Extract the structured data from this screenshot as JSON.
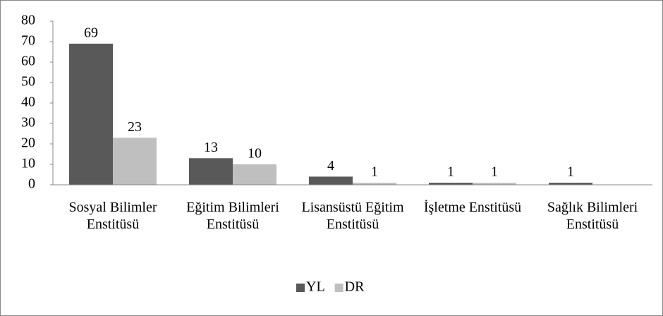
{
  "chart_data": {
    "type": "bar",
    "categories": [
      "Sosyal Bilimler Enstitüsü",
      "Eğitim Bilimleri Enstitüsü",
      "Lisansüstü Eğitim Enstitüsü",
      "İşletme Enstitüsü",
      "Sağlık Bilimleri Enstitüsü"
    ],
    "series": [
      {
        "name": "YL",
        "color": "#595959",
        "values": [
          69,
          13,
          4,
          1,
          1
        ]
      },
      {
        "name": "DR",
        "color": "#bfbfbf",
        "values": [
          23,
          10,
          1,
          1,
          null
        ]
      }
    ],
    "ylim": [
      0,
      80
    ],
    "yticks": [
      0,
      10,
      20,
      30,
      40,
      50,
      60,
      70,
      80
    ],
    "grid": false,
    "legend": "bottom"
  }
}
